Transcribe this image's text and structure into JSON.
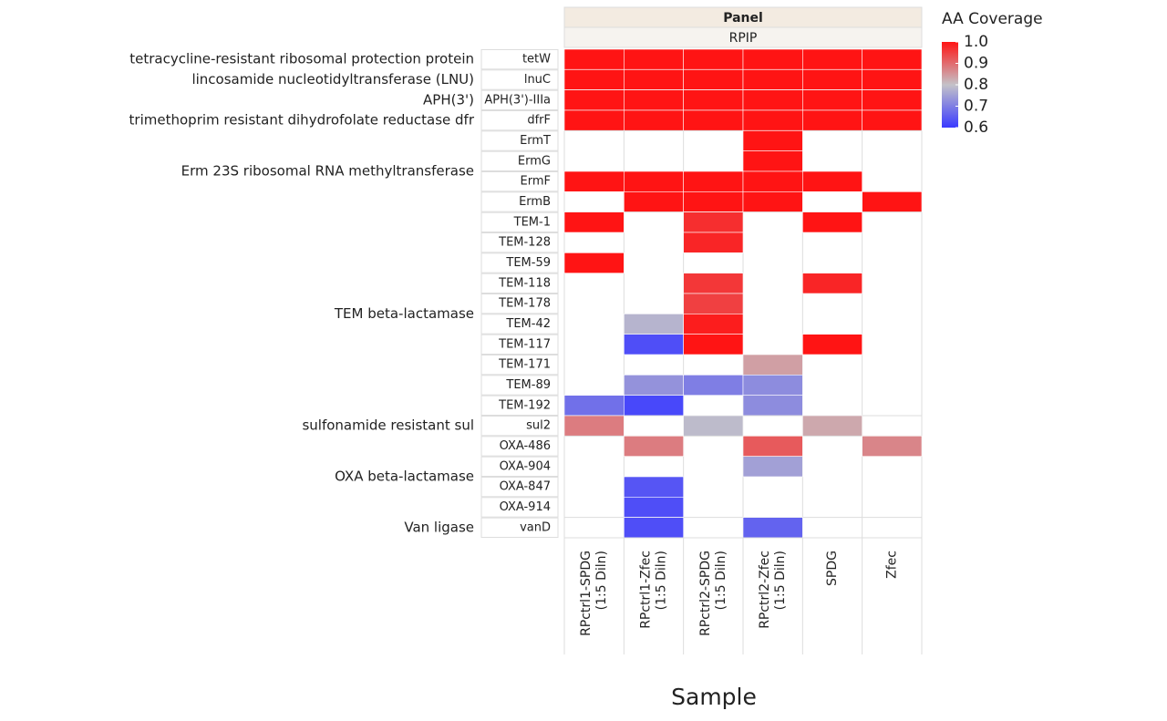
{
  "chart_data": {
    "type": "heatmap",
    "panel_title": "Panel",
    "panel": "RPIP",
    "legend_title": "AA Coverage",
    "x_label": "Sample",
    "columns": [
      [
        "RPctrl1-SPDG",
        "(1:5 Diln)"
      ],
      [
        "RPctrl1-Zfec",
        "(1:5 Diln)"
      ],
      [
        "RPctrl2-SPDG",
        "(1:5 Diln)"
      ],
      [
        "RPctrl2-Zfec",
        "(1:5 Diln)"
      ],
      [
        "SPDG"
      ],
      [
        "Zfec"
      ]
    ],
    "groups": [
      {
        "label": "tetracycline-resistant ribosomal protection protein",
        "rows": [
          "tetW"
        ],
        "values": [
          [
            1,
            1,
            1,
            1,
            1,
            1
          ]
        ]
      },
      {
        "label": "lincosamide nucleotidyltransferase (LNU)",
        "rows": [
          "lnuC"
        ],
        "values": [
          [
            1,
            1,
            1,
            1,
            1,
            1
          ]
        ]
      },
      {
        "label": "APH(3')",
        "rows": [
          "APH(3')-IIIa"
        ],
        "values": [
          [
            1,
            1,
            1,
            1,
            1,
            1
          ]
        ]
      },
      {
        "label": "trimethoprim resistant dihydrofolate reductase dfr",
        "rows": [
          "dfrF"
        ],
        "values": [
          [
            1,
            1,
            1,
            1,
            1,
            1
          ]
        ]
      },
      {
        "label": "Erm 23S ribosomal RNA methyltransferase",
        "rows": [
          "ErmT",
          "ErmG",
          "ErmF",
          "ErmB"
        ],
        "values": [
          [
            null,
            null,
            null,
            1,
            null,
            null
          ],
          [
            null,
            null,
            null,
            1,
            null,
            null
          ],
          [
            1,
            1,
            1,
            1,
            1,
            null
          ],
          [
            null,
            1,
            1,
            1,
            null,
            1
          ]
        ]
      },
      {
        "label": "TEM beta-lactamase",
        "rows": [
          "TEM-1",
          "TEM-128",
          "TEM-59",
          "TEM-118",
          "TEM-178",
          "TEM-42",
          "TEM-117",
          "TEM-171",
          "TEM-89",
          "TEM-192"
        ],
        "values": [
          [
            1,
            null,
            0.97,
            null,
            1,
            null
          ],
          [
            null,
            null,
            0.98,
            null,
            null,
            null
          ],
          [
            1,
            null,
            null,
            null,
            null,
            null
          ],
          [
            null,
            null,
            0.96,
            null,
            0.98,
            null
          ],
          [
            null,
            null,
            0.95,
            null,
            null,
            null
          ],
          [
            null,
            0.78,
            0.99,
            null,
            null,
            null
          ],
          [
            null,
            0.63,
            1,
            null,
            1,
            null
          ],
          [
            null,
            null,
            null,
            0.84,
            null,
            null
          ],
          [
            null,
            0.73,
            0.7,
            0.72,
            null,
            null
          ],
          [
            0.68,
            0.62,
            null,
            0.72,
            null,
            null
          ]
        ]
      },
      {
        "label": "sulfonamide resistant sul",
        "rows": [
          "sul2"
        ],
        "values": [
          [
            0.88,
            null,
            0.79,
            null,
            0.83,
            null
          ]
        ]
      },
      {
        "label": "OXA beta-lactamase",
        "rows": [
          "OXA-486",
          "OXA-904",
          "OXA-847",
          "OXA-914"
        ],
        "values": [
          [
            null,
            0.88,
            null,
            0.92,
            null,
            0.87
          ],
          [
            null,
            null,
            null,
            0.75,
            null,
            null
          ],
          [
            null,
            0.64,
            null,
            null,
            null,
            null
          ],
          [
            null,
            0.63,
            null,
            null,
            null,
            null
          ]
        ]
      },
      {
        "label": "Van ligase",
        "rows": [
          "vanD"
        ],
        "values": [
          [
            null,
            0.63,
            null,
            0.66,
            null,
            null
          ]
        ]
      }
    ],
    "clim": [
      0.6,
      1
    ],
    "colorscale": [
      {
        "value": 0.6,
        "color": "#3a3aff"
      },
      {
        "value": 0.8,
        "color": "#c4c2c8"
      },
      {
        "value": 1,
        "color": "#ff1414"
      }
    ],
    "cticks": [
      0.6,
      0.7,
      0.8,
      0.9,
      {
        "value": 1,
        "label": "1.0"
      }
    ]
  }
}
